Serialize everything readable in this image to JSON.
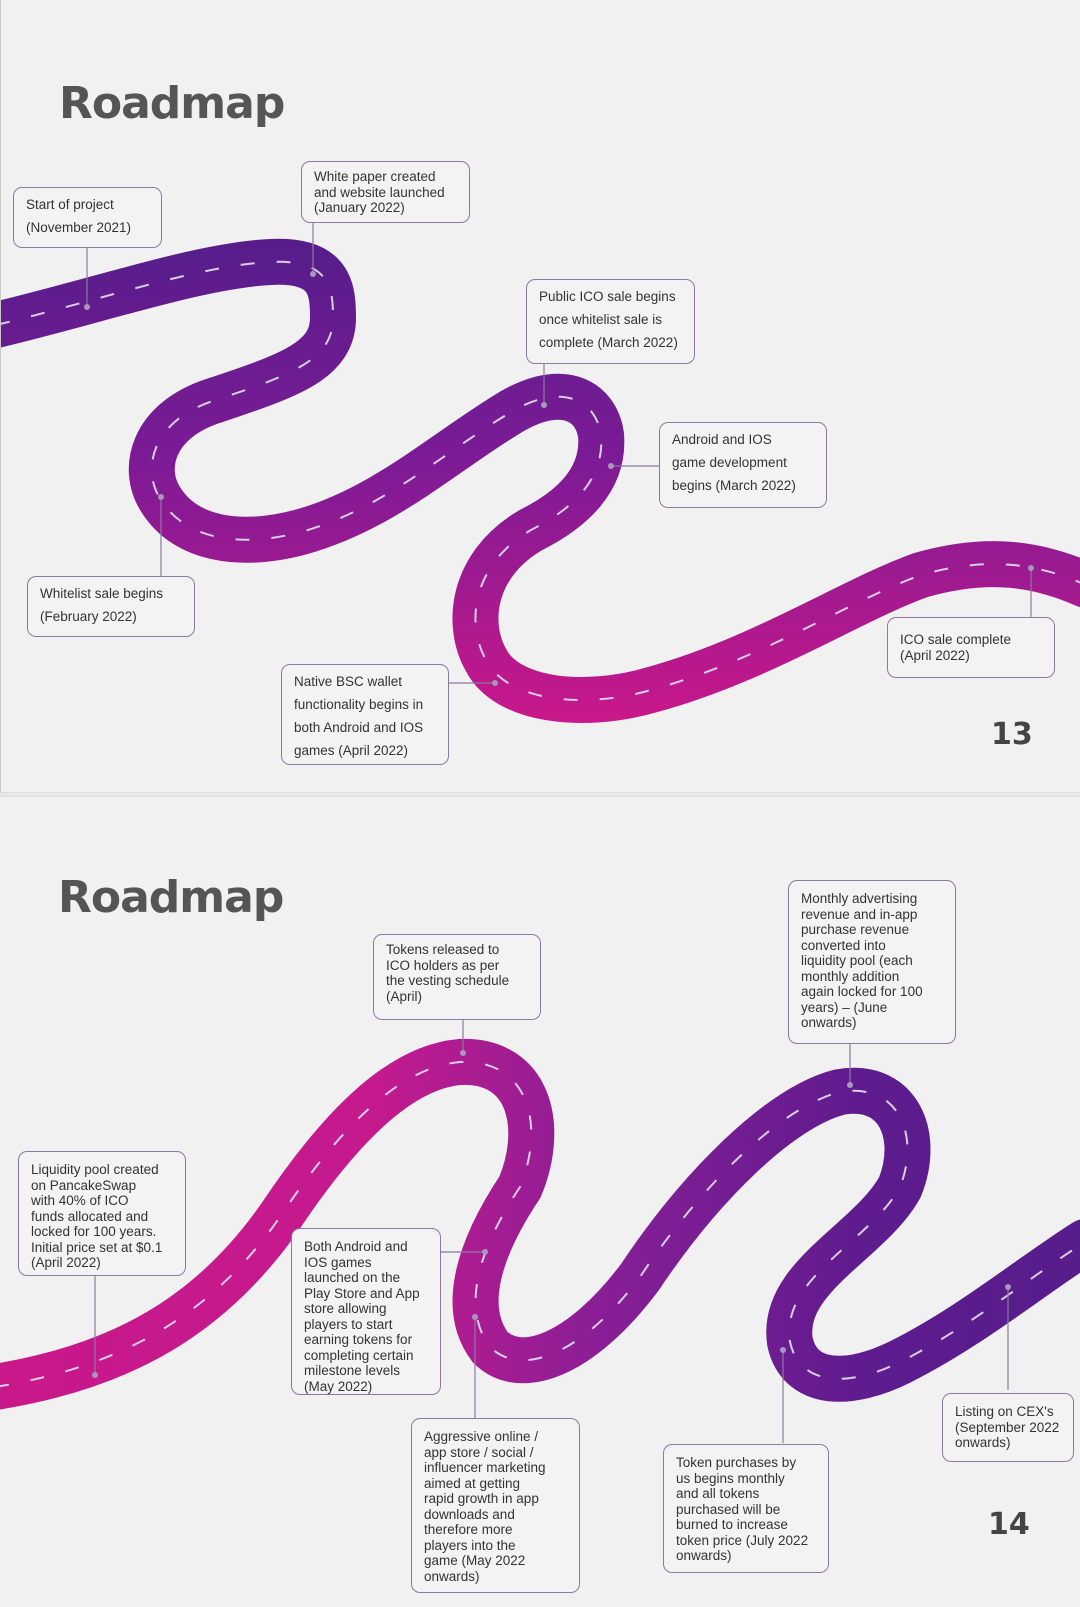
{
  "pages": [
    {
      "title": "Roadmap",
      "page_number": "13",
      "milestones": [
        "Start of project\n(November 2021)",
        "White paper created\nand website launched\n(January 2022)",
        "Public ICO sale begins\nonce whitelist sale is\ncomplete (March 2022)",
        "Android and IOS\ngame development\nbegins (March 2022)",
        "Whitelist sale begins\n(February 2022)",
        "ICO sale complete\n(April 2022)",
        "Native BSC wallet\nfunctionality begins in\nboth Android and IOS\ngames (April 2022)"
      ]
    },
    {
      "title": "Roadmap",
      "page_number": "14",
      "milestones": [
        "Tokens released to\nICO holders as per\nthe vesting schedule\n(April)",
        "Monthly advertising\nrevenue and in-app\npurchase revenue\nconverted into\nliquidity pool (each\nmonthly addition\nagain locked for 100\nyears) – (June\nonwards)",
        "Liquidity pool created\non PancakeSwap\nwith 40% of ICO\nfunds allocated and\nlocked for 100 years.\nInitial price set at $0.1\n(April 2022)",
        "Both Android and\nIOS games\nlaunched on the\nPlay Store and App\nstore allowing\nplayers to start\nearning tokens for\ncompleting certain\nmilestone levels\n(May 2022)",
        "Aggressive online /\napp store / social /\ninfluencer marketing\naimed at getting\nrapid growth in app\ndownloads and\ntherefore more\nplayers into the\ngame (May 2022\nonwards)",
        "Token purchases by\nus begins monthly\nand all tokens\npurchased will be\nburned to increase\ntoken price (July 2022\nonwards)",
        "Listing on CEX's\n(September 2022\nonwards)"
      ]
    }
  ],
  "colors": {
    "road_purple": "#5a1d8c",
    "road_magenta": "#c8188a",
    "connector": "#8a7aa0",
    "dash": "#cfc3de"
  }
}
